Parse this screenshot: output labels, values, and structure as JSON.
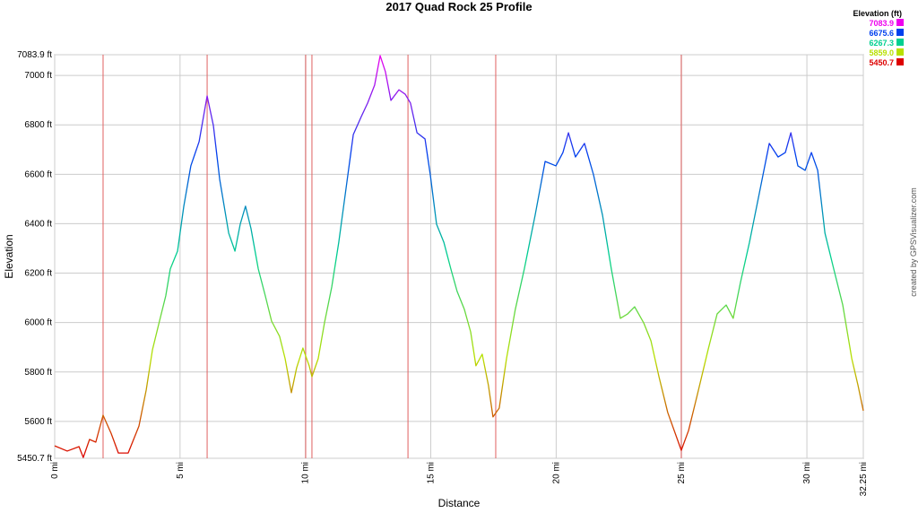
{
  "chart_data": {
    "type": "line",
    "title": "2017 Quad Rock 25 Profile",
    "x_label": "Distance",
    "y_label": "Elevation",
    "credit": "created by GPSVisualizer.com",
    "legend_title": "Elevation (ft)",
    "color_scale": [
      {
        "value": 7083.9,
        "label": "7083.9",
        "color": "#ee00ee"
      },
      {
        "value": 6675.6,
        "label": "6675.6",
        "color": "#0040ee"
      },
      {
        "value": 6267.3,
        "label": "6267.3",
        "color": "#00d090"
      },
      {
        "value": 5859.0,
        "label": "5859.0",
        "color": "#b8e000"
      },
      {
        "value": 5450.7,
        "label": "5450.7",
        "color": "#dd0000"
      }
    ],
    "xlim": [
      0,
      32.25
    ],
    "ylim": [
      5450.7,
      7083.9
    ],
    "xticks": [
      {
        "value": 0,
        "label": "0 mi"
      },
      {
        "value": 5,
        "label": "5 mi"
      },
      {
        "value": 10,
        "label": "10 mi"
      },
      {
        "value": 15,
        "label": "15 mi"
      },
      {
        "value": 20,
        "label": "20 mi"
      },
      {
        "value": 25,
        "label": "25 mi"
      },
      {
        "value": 30,
        "label": "30 mi"
      },
      {
        "value": 32.25,
        "label": "32.25 mi"
      }
    ],
    "yticks": [
      {
        "value": 5450.7,
        "label": "5450.7 ft"
      },
      {
        "value": 5600,
        "label": "5600 ft"
      },
      {
        "value": 5800,
        "label": "5800 ft"
      },
      {
        "value": 6000,
        "label": "6000 ft"
      },
      {
        "value": 6200,
        "label": "6200 ft"
      },
      {
        "value": 6400,
        "label": "6400 ft"
      },
      {
        "value": 6600,
        "label": "6600 ft"
      },
      {
        "value": 6800,
        "label": "6800 ft"
      },
      {
        "value": 7000,
        "label": "7000 ft"
      },
      {
        "value": 7083.9,
        "label": "7083.9 ft"
      }
    ],
    "grid": true,
    "marker_color": "#e06060",
    "markers": [
      1.93,
      6.08,
      10.01,
      10.26,
      14.09,
      17.59,
      24.99
    ],
    "x": [
      0,
      0.5,
      0.97,
      1.14,
      1.39,
      1.64,
      1.93,
      2.25,
      2.54,
      2.93,
      3.36,
      3.65,
      3.9,
      4.18,
      4.43,
      4.61,
      4.9,
      5.15,
      5.43,
      5.76,
      6.08,
      6.33,
      6.58,
      6.94,
      7.19,
      7.4,
      7.61,
      7.83,
      8.12,
      8.4,
      8.65,
      8.97,
      9.19,
      9.44,
      9.65,
      9.9,
      10.15,
      10.26,
      10.51,
      10.76,
      11.05,
      11.33,
      11.62,
      11.91,
      12.23,
      12.48,
      12.76,
      12.98,
      13.19,
      13.41,
      13.73,
      13.98,
      14.19,
      14.45,
      14.77,
      14.98,
      15.23,
      15.52,
      15.8,
      16.05,
      16.34,
      16.59,
      16.8,
      17.05,
      17.3,
      17.48,
      17.73,
      18.02,
      18.37,
      18.73,
      19.16,
      19.56,
      19.99,
      20.27,
      20.49,
      20.77,
      21.13,
      21.49,
      21.85,
      22.2,
      22.56,
      22.85,
      23.13,
      23.49,
      23.78,
      24.1,
      24.45,
      24.99,
      25.28,
      25.63,
      26.06,
      26.42,
      26.78,
      27.06,
      27.35,
      27.71,
      28.07,
      28.5,
      28.85,
      29.14,
      29.36,
      29.64,
      29.93,
      30.18,
      30.43,
      30.72,
      31.07,
      31.43,
      31.79,
      32.04,
      32.25
    ],
    "values": [
      5501,
      5480,
      5498,
      5454,
      5527,
      5516,
      5625,
      5552,
      5472,
      5472,
      5581,
      5727,
      5890,
      6006,
      6108,
      6217,
      6289,
      6471,
      6634,
      6732,
      6917,
      6797,
      6580,
      6362,
      6289,
      6398,
      6471,
      6380,
      6217,
      6108,
      6006,
      5944,
      5854,
      5716,
      5817,
      5897,
      5825,
      5781,
      5854,
      5999,
      6144,
      6325,
      6543,
      6761,
      6834,
      6888,
      6961,
      7080,
      7015,
      6899,
      6942,
      6924,
      6888,
      6768,
      6743,
      6598,
      6398,
      6325,
      6217,
      6126,
      6053,
      5962,
      5825,
      5872,
      5745,
      5618,
      5654,
      5854,
      6053,
      6217,
      6434,
      6652,
      6634,
      6688,
      6768,
      6670,
      6725,
      6598,
      6434,
      6217,
      6017,
      6035,
      6064,
      5999,
      5926,
      5781,
      5636,
      5483,
      5563,
      5708,
      5890,
      6035,
      6071,
      6017,
      6162,
      6325,
      6507,
      6725,
      6670,
      6688,
      6768,
      6634,
      6616,
      6688,
      6616,
      6362,
      6217,
      6071,
      5854,
      5745,
      5643
    ]
  }
}
